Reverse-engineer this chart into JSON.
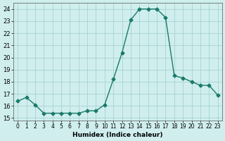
{
  "x": [
    0,
    1,
    2,
    3,
    4,
    5,
    6,
    7,
    8,
    9,
    10,
    11,
    12,
    13,
    14,
    15,
    16,
    17,
    18,
    19,
    20,
    21,
    22,
    23
  ],
  "y": [
    16.4,
    16.7,
    16.1,
    15.4,
    15.4,
    15.4,
    15.4,
    15.4,
    15.6,
    15.6,
    16.1,
    18.2,
    20.4,
    23.1,
    24.0,
    24.0,
    24.0,
    23.3,
    18.5,
    18.3,
    18.0,
    17.7,
    17.7,
    16.9
  ],
  "line_color": "#1a7a6a",
  "marker": "D",
  "marker_size": 2.5,
  "bg_color": "#d0eeee",
  "grid_color": "#a0cccc",
  "xlabel": "Humidex (Indice chaleur)",
  "ylabel_ticks": [
    15,
    16,
    17,
    18,
    19,
    20,
    21,
    22,
    23,
    24
  ],
  "xlim": [
    -0.5,
    23.5
  ],
  "ylim": [
    14.8,
    24.5
  ]
}
